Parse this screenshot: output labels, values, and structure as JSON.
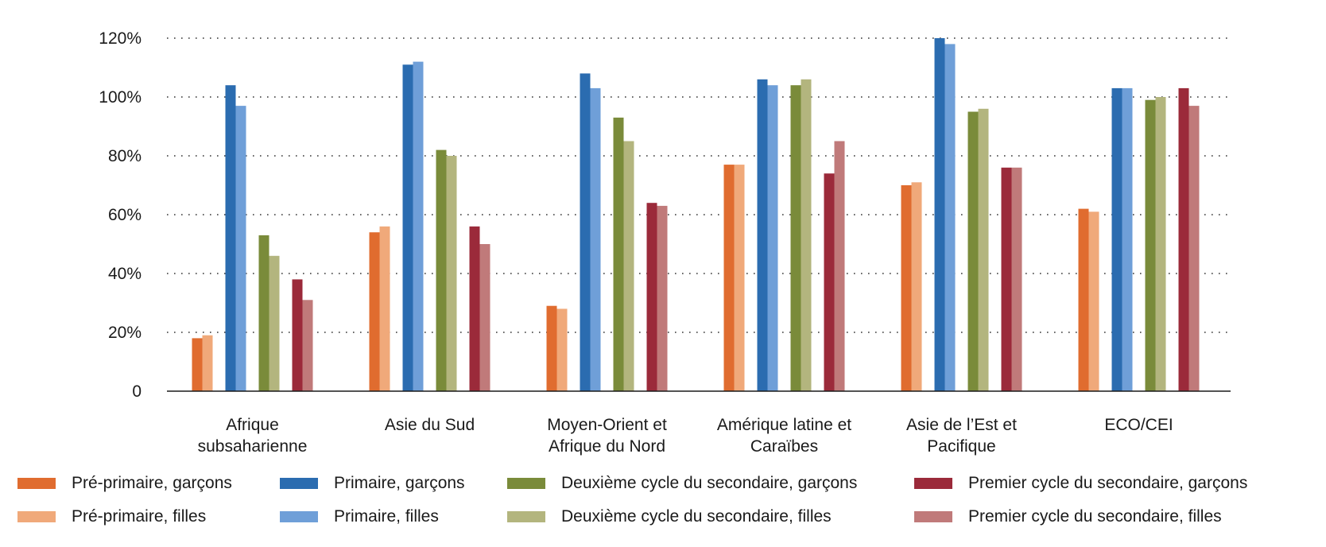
{
  "chart_data": {
    "type": "bar",
    "title": "",
    "xlabel": "",
    "ylabel": "",
    "y_tick_labels": [
      "0",
      "20%",
      "40%",
      "60%",
      "80%",
      "100%",
      "120%"
    ],
    "ylim": [
      0,
      120
    ],
    "grid": "horizontal dotted",
    "legend_position": "bottom",
    "categories": [
      "Afrique subsaharienne",
      "Asie du Sud",
      "Moyen-Orient et Afrique du Nord",
      "Amérique latine et Caraïbes",
      "Asie de l’Est et Pacifique",
      "ECO/CEI"
    ],
    "category_label_lines": [
      [
        "Afrique",
        "subsaharienne"
      ],
      [
        "Asie du Sud"
      ],
      [
        "Moyen-Orient et",
        "Afrique du Nord"
      ],
      [
        "Amérique latine et",
        "Caraïbes"
      ],
      [
        "Asie de l’Est et",
        "Pacifique"
      ],
      [
        "ECO/CEI"
      ]
    ],
    "series": [
      {
        "name": "Pré-primaire, garçons",
        "color": "#e06c2f",
        "values": [
          18,
          54,
          29,
          77,
          70,
          62
        ]
      },
      {
        "name": "Pré-primaire, filles",
        "color": "#f0a97a",
        "values": [
          19,
          56,
          28,
          77,
          71,
          61
        ]
      },
      {
        "name": "Primaire, garçons",
        "color": "#2b6cb0",
        "values": [
          104,
          111,
          108,
          106,
          120,
          103
        ]
      },
      {
        "name": "Primaire, filles",
        "color": "#6f9fd8",
        "values": [
          97,
          112,
          103,
          104,
          118,
          103
        ]
      },
      {
        "name": "Deuxième cycle du secondaire, garçons",
        "color": "#7a8b3a",
        "values": [
          53,
          82,
          93,
          104,
          95,
          99
        ]
      },
      {
        "name": "Deuxième cycle du secondaire, filles",
        "color": "#b3b57e",
        "values": [
          46,
          80,
          85,
          106,
          96,
          100
        ]
      },
      {
        "name": "Premier cycle du secondaire, garçons",
        "color": "#9b2a3a",
        "values": [
          38,
          56,
          64,
          74,
          76,
          103
        ]
      },
      {
        "name": "Premier cycle du secondaire, filles",
        "color": "#c07a7a",
        "values": [
          31,
          50,
          63,
          85,
          76,
          97
        ]
      }
    ]
  },
  "legend": {
    "rows": [
      [
        0,
        2,
        4,
        6
      ],
      [
        1,
        3,
        5,
        7
      ]
    ]
  }
}
